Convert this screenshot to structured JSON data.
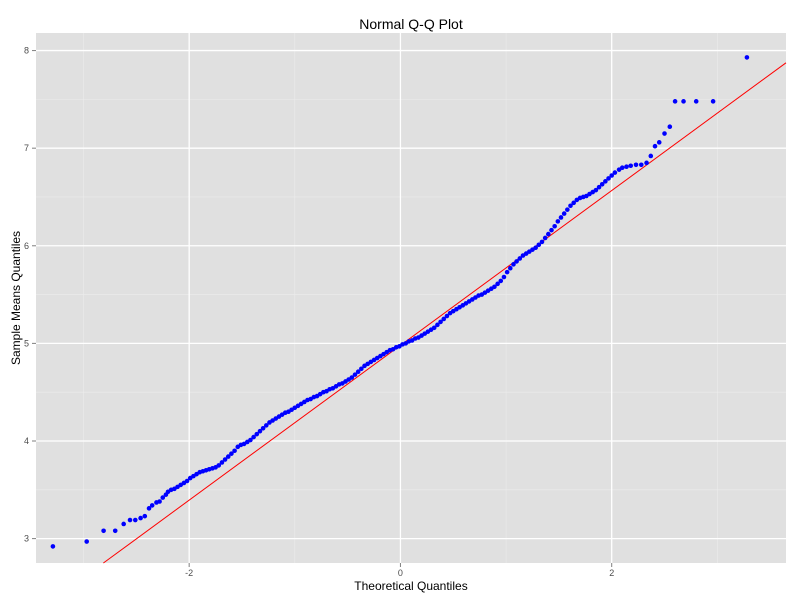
{
  "chart_data": {
    "type": "scatter",
    "title": "Normal Q-Q Plot",
    "xlabel": "Theoretical Quantiles",
    "ylabel": "Sample Means Quantiles",
    "xlim": [
      -3.45,
      3.65
    ],
    "ylim": [
      2.75,
      8.18
    ],
    "x_ticks": [
      -2,
      0,
      2
    ],
    "y_ticks": [
      3,
      4,
      5,
      6,
      7,
      8
    ],
    "x_tick_labels": [
      "-2",
      "0",
      "2"
    ],
    "y_tick_labels": [
      "3",
      "4",
      "5",
      "6",
      "7",
      "8"
    ],
    "grid": true,
    "point_color": "#0000ff",
    "line_color": "#ff0000",
    "panel_background": "#e0e0e0",
    "reference_line": {
      "intercept": 4.98,
      "slope": 0.793
    },
    "points": [
      [
        -3.29,
        2.92
      ],
      [
        -2.97,
        2.97
      ],
      [
        -2.81,
        3.08
      ],
      [
        -2.7,
        3.08
      ],
      [
        -2.62,
        3.15
      ],
      [
        -2.56,
        3.19
      ],
      [
        -2.51,
        3.19
      ],
      [
        -2.46,
        3.21
      ],
      [
        -2.42,
        3.23
      ],
      [
        -2.38,
        3.31
      ],
      [
        -2.35,
        3.34
      ],
      [
        -2.31,
        3.37
      ],
      [
        -2.28,
        3.38
      ],
      [
        -2.25,
        3.42
      ],
      [
        -2.22,
        3.45
      ],
      [
        -2.2,
        3.48
      ],
      [
        -2.17,
        3.5
      ],
      [
        -2.14,
        3.51
      ],
      [
        -2.11,
        3.53
      ],
      [
        -2.08,
        3.55
      ],
      [
        -2.05,
        3.57
      ],
      [
        -2.02,
        3.59
      ],
      [
        -1.99,
        3.62
      ],
      [
        -1.96,
        3.64
      ],
      [
        -1.93,
        3.66
      ],
      [
        -1.9,
        3.68
      ],
      [
        -1.87,
        3.69
      ],
      [
        -1.84,
        3.7
      ],
      [
        -1.81,
        3.71
      ],
      [
        -1.78,
        3.72
      ],
      [
        -1.75,
        3.73
      ],
      [
        -1.72,
        3.75
      ],
      [
        -1.69,
        3.78
      ],
      [
        -1.66,
        3.81
      ],
      [
        -1.63,
        3.84
      ],
      [
        -1.6,
        3.87
      ],
      [
        -1.57,
        3.9
      ],
      [
        -1.54,
        3.94
      ],
      [
        -1.51,
        3.96
      ],
      [
        -1.48,
        3.97
      ],
      [
        -1.45,
        3.99
      ],
      [
        -1.42,
        4.01
      ],
      [
        -1.39,
        4.04
      ],
      [
        -1.36,
        4.07
      ],
      [
        -1.33,
        4.1
      ],
      [
        -1.3,
        4.13
      ],
      [
        -1.27,
        4.16
      ],
      [
        -1.24,
        4.19
      ],
      [
        -1.21,
        4.21
      ],
      [
        -1.18,
        4.23
      ],
      [
        -1.15,
        4.25
      ],
      [
        -1.12,
        4.27
      ],
      [
        -1.09,
        4.29
      ],
      [
        -1.06,
        4.3
      ],
      [
        -1.03,
        4.32
      ],
      [
        -1.0,
        4.34
      ],
      [
        -0.97,
        4.36
      ],
      [
        -0.94,
        4.38
      ],
      [
        -0.91,
        4.4
      ],
      [
        -0.88,
        4.42
      ],
      [
        -0.85,
        4.43
      ],
      [
        -0.82,
        4.45
      ],
      [
        -0.79,
        4.46
      ],
      [
        -0.76,
        4.48
      ],
      [
        -0.73,
        4.5
      ],
      [
        -0.7,
        4.51
      ],
      [
        -0.67,
        4.53
      ],
      [
        -0.64,
        4.54
      ],
      [
        -0.61,
        4.56
      ],
      [
        -0.58,
        4.58
      ],
      [
        -0.55,
        4.59
      ],
      [
        -0.52,
        4.61
      ],
      [
        -0.49,
        4.63
      ],
      [
        -0.46,
        4.65
      ],
      [
        -0.43,
        4.68
      ],
      [
        -0.4,
        4.71
      ],
      [
        -0.37,
        4.74
      ],
      [
        -0.34,
        4.77
      ],
      [
        -0.31,
        4.79
      ],
      [
        -0.28,
        4.81
      ],
      [
        -0.25,
        4.83
      ],
      [
        -0.22,
        4.85
      ],
      [
        -0.19,
        4.87
      ],
      [
        -0.16,
        4.89
      ],
      [
        -0.13,
        4.91
      ],
      [
        -0.1,
        4.93
      ],
      [
        -0.07,
        4.94
      ],
      [
        -0.04,
        4.96
      ],
      [
        -0.01,
        4.97
      ],
      [
        0.02,
        4.99
      ],
      [
        0.05,
        5.0
      ],
      [
        0.08,
        5.02
      ],
      [
        0.11,
        5.03
      ],
      [
        0.14,
        5.05
      ],
      [
        0.17,
        5.06
      ],
      [
        0.2,
        5.08
      ],
      [
        0.23,
        5.1
      ],
      [
        0.26,
        5.12
      ],
      [
        0.29,
        5.14
      ],
      [
        0.32,
        5.16
      ],
      [
        0.35,
        5.19
      ],
      [
        0.38,
        5.22
      ],
      [
        0.41,
        5.25
      ],
      [
        0.44,
        5.28
      ],
      [
        0.47,
        5.31
      ],
      [
        0.5,
        5.33
      ],
      [
        0.53,
        5.35
      ],
      [
        0.56,
        5.37
      ],
      [
        0.59,
        5.39
      ],
      [
        0.62,
        5.41
      ],
      [
        0.65,
        5.43
      ],
      [
        0.68,
        5.45
      ],
      [
        0.71,
        5.47
      ],
      [
        0.74,
        5.49
      ],
      [
        0.77,
        5.5
      ],
      [
        0.8,
        5.52
      ],
      [
        0.83,
        5.54
      ],
      [
        0.86,
        5.56
      ],
      [
        0.89,
        5.58
      ],
      [
        0.92,
        5.61
      ],
      [
        0.95,
        5.64
      ],
      [
        0.98,
        5.68
      ],
      [
        1.01,
        5.73
      ],
      [
        1.04,
        5.77
      ],
      [
        1.07,
        5.81
      ],
      [
        1.1,
        5.84
      ],
      [
        1.13,
        5.87
      ],
      [
        1.16,
        5.9
      ],
      [
        1.19,
        5.92
      ],
      [
        1.22,
        5.94
      ],
      [
        1.25,
        5.96
      ],
      [
        1.28,
        5.98
      ],
      [
        1.31,
        6.01
      ],
      [
        1.34,
        6.04
      ],
      [
        1.37,
        6.08
      ],
      [
        1.4,
        6.12
      ],
      [
        1.43,
        6.16
      ],
      [
        1.46,
        6.2
      ],
      [
        1.49,
        6.25
      ],
      [
        1.52,
        6.29
      ],
      [
        1.55,
        6.33
      ],
      [
        1.58,
        6.37
      ],
      [
        1.61,
        6.41
      ],
      [
        1.64,
        6.44
      ],
      [
        1.67,
        6.47
      ],
      [
        1.7,
        6.49
      ],
      [
        1.73,
        6.5
      ],
      [
        1.76,
        6.51
      ],
      [
        1.79,
        6.53
      ],
      [
        1.82,
        6.55
      ],
      [
        1.85,
        6.57
      ],
      [
        1.88,
        6.6
      ],
      [
        1.91,
        6.63
      ],
      [
        1.94,
        6.66
      ],
      [
        1.97,
        6.69
      ],
      [
        2.0,
        6.72
      ],
      [
        2.03,
        6.75
      ],
      [
        2.07,
        6.78
      ],
      [
        2.1,
        6.8
      ],
      [
        2.14,
        6.81
      ],
      [
        2.18,
        6.82
      ],
      [
        2.23,
        6.83
      ],
      [
        2.28,
        6.83
      ],
      [
        2.33,
        6.85
      ],
      [
        2.37,
        6.92
      ],
      [
        2.41,
        7.02
      ],
      [
        2.45,
        7.06
      ],
      [
        2.5,
        7.15
      ],
      [
        2.55,
        7.22
      ],
      [
        2.6,
        7.48
      ],
      [
        2.68,
        7.48
      ],
      [
        2.8,
        7.48
      ],
      [
        2.96,
        7.48
      ],
      [
        3.28,
        7.93
      ]
    ]
  }
}
